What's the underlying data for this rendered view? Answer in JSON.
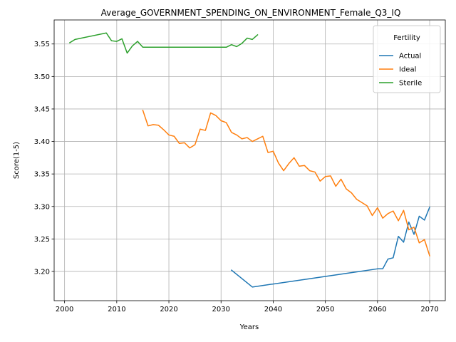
{
  "chart_data": {
    "type": "line",
    "title": "Average_GOVERNMENT_SPENDING_ON_ENVIRONMENT_Female_Q3_IQ",
    "xlabel": "Years",
    "ylabel": "Score(1-5)",
    "xlim": [
      1998,
      2073
    ],
    "ylim": [
      3.155,
      3.587
    ],
    "xticks": [
      2000,
      2010,
      2020,
      2030,
      2040,
      2050,
      2060,
      2070
    ],
    "yticks": [
      3.2,
      3.25,
      3.3,
      3.35,
      3.4,
      3.45,
      3.5,
      3.55
    ],
    "ytick_labels": [
      "3.20",
      "3.25",
      "3.30",
      "3.35",
      "3.40",
      "3.45",
      "3.50",
      "3.55"
    ],
    "grid": true,
    "legend": {
      "title": "Fertility",
      "placement": "top-right"
    },
    "series": [
      {
        "name": "Actual",
        "color": "#1f77b4",
        "x": [
          2032,
          2036,
          2060,
          2061,
          2062,
          2063,
          2064,
          2065,
          2066,
          2067,
          2068,
          2069,
          2070
        ],
        "y": [
          3.202,
          3.176,
          3.204,
          3.204,
          3.219,
          3.221,
          3.254,
          3.245,
          3.276,
          3.257,
          3.285,
          3.279,
          3.299
        ]
      },
      {
        "name": "Ideal",
        "color": "#ff7f0e",
        "x": [
          2015,
          2016,
          2017,
          2018,
          2019,
          2020,
          2021,
          2022,
          2023,
          2024,
          2025,
          2026,
          2027,
          2028,
          2029,
          2030,
          2031,
          2032,
          2033,
          2034,
          2035,
          2036,
          2037,
          2038,
          2039,
          2040,
          2041,
          2042,
          2043,
          2044,
          2045,
          2046,
          2047,
          2048,
          2049,
          2050,
          2051,
          2052,
          2053,
          2054,
          2055,
          2056,
          2057,
          2058,
          2059,
          2060,
          2061,
          2062,
          2063,
          2064,
          2065,
          2066,
          2067,
          2068,
          2069,
          2070
        ],
        "y": [
          3.448,
          3.424,
          3.426,
          3.425,
          3.418,
          3.41,
          3.408,
          3.397,
          3.398,
          3.39,
          3.395,
          3.419,
          3.417,
          3.444,
          3.44,
          3.432,
          3.429,
          3.414,
          3.41,
          3.404,
          3.406,
          3.4,
          3.404,
          3.408,
          3.383,
          3.385,
          3.367,
          3.355,
          3.366,
          3.375,
          3.362,
          3.363,
          3.355,
          3.353,
          3.339,
          3.346,
          3.347,
          3.331,
          3.342,
          3.327,
          3.321,
          3.311,
          3.306,
          3.301,
          3.286,
          3.298,
          3.282,
          3.289,
          3.293,
          3.278,
          3.294,
          3.264,
          3.268,
          3.244,
          3.249,
          3.224
        ]
      },
      {
        "name": "Sterile",
        "color": "#2ca02c",
        "x": [
          2001,
          2002,
          2008,
          2009,
          2010,
          2011,
          2012,
          2013,
          2014,
          2015,
          2016,
          2031,
          2032,
          2033,
          2034,
          2035,
          2036,
          2037
        ],
        "y": [
          3.552,
          3.557,
          3.567,
          3.555,
          3.554,
          3.558,
          3.536,
          3.547,
          3.554,
          3.545,
          3.545,
          3.545,
          3.549,
          3.546,
          3.551,
          3.559,
          3.557,
          3.564
        ]
      }
    ]
  }
}
